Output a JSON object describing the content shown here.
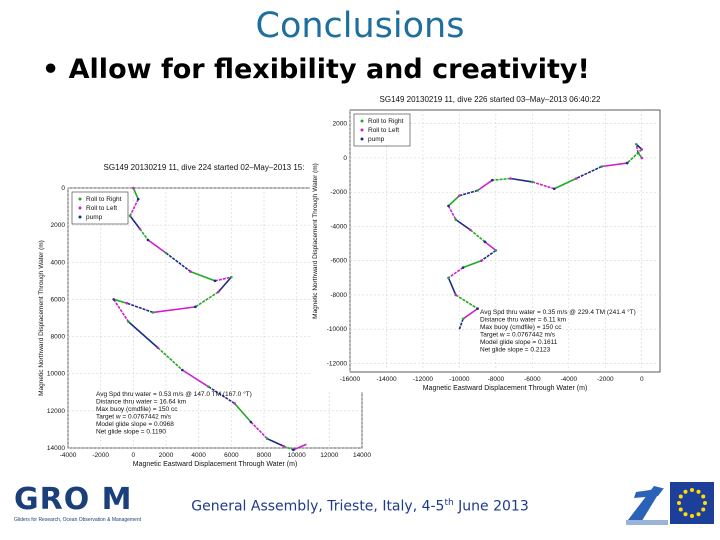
{
  "slide": {
    "title": "Conclusions",
    "bullet": "• Allow for flexibility and creativity!",
    "footer": "General Assembly, Trieste, Italy, 4-5",
    "footer_sup": "th",
    "footer_tail": " June 2013",
    "groom_logo_text": "GRO M",
    "groom_logo_sub": "Gliders for Research, Ocean Observation & Management"
  },
  "colors": {
    "title": "#1f6f9e",
    "right_roll": "#22aa22",
    "left_roll": "#cc22cc",
    "pump": "#1e2a8a"
  },
  "chart_data": [
    {
      "type": "line",
      "title": "SG149 20130219 11, dive 224 started 02–May–2013 15:",
      "xlabel": "Magnetic Eastward Displacement Through Water (m)",
      "ylabel": "Magnetic Northward Displacement Through Water (m)",
      "xticks": [
        "-4000",
        "-2000",
        "0",
        "2000",
        "4000",
        "6000",
        "8000",
        "10000",
        "12000",
        "14000"
      ],
      "yticks": [
        "0",
        "2000",
        "4000",
        "6000",
        "8000",
        "10000",
        "12000",
        "14000"
      ],
      "legend": [
        "Roll to Right",
        "Roll to Left",
        "pump"
      ],
      "stats": [
        "Avg Spd thru water = 0.53 m/s @ 147.0    TM (167.0 °T)",
        "Distance thru water = 16.64 km",
        "Max buoy (cmdfile) =    150 cc",
        "Target w = 0.0767442 m/s",
        "Model glide slope = 0.0968",
        "Net glide slope = 0.1190"
      ],
      "path": [
        [
          0,
          0
        ],
        [
          300,
          600
        ],
        [
          -200,
          1500
        ],
        [
          400,
          2200
        ],
        [
          900,
          2800
        ],
        [
          2000,
          3500
        ],
        [
          3500,
          4500
        ],
        [
          5000,
          5000
        ],
        [
          6000,
          4800
        ],
        [
          5200,
          5600
        ],
        [
          3800,
          6400
        ],
        [
          1200,
          6700
        ],
        [
          -400,
          6200
        ],
        [
          -1200,
          6000
        ],
        [
          -300,
          7200
        ],
        [
          1500,
          8600
        ],
        [
          3000,
          9800
        ],
        [
          4600,
          10700
        ],
        [
          6200,
          11600
        ],
        [
          7200,
          12600
        ],
        [
          8200,
          13500
        ],
        [
          9200,
          13900
        ],
        [
          9800,
          14100
        ],
        [
          10600,
          13800
        ]
      ]
    },
    {
      "type": "line",
      "title": "SG149 20130219 11, dive 226 started 03–May–2013 06:40:22",
      "xlabel": "Magnetic Eastward Displacement Through Water (m)",
      "ylabel": "Magnetic Northward Displacement Through Water (m)",
      "xticks": [
        "-16000",
        "-14000",
        "-12000",
        "-10000",
        "-8000",
        "-6000",
        "-4000",
        "-2000",
        "0"
      ],
      "yticks": [
        "2000",
        "0",
        "-2000",
        "-4000",
        "-6000",
        "-8000",
        "-10000",
        "-12000"
      ],
      "legend": [
        "Roll to Right",
        "Roll to Left",
        "pump"
      ],
      "stats": [
        "Avg Spd thru water = 0.35 m/s @ 229.4    TM (241.4 °T)",
        "Distance thru water = 6.11 km",
        "Max buoy (cmdfile) = 150 cc",
        "Target w = 0.0767442 m/s",
        "Model glide slope = 0.1611",
        "Net glide slope = 0.2123"
      ],
      "path": [
        [
          0,
          0
        ],
        [
          -200,
          300
        ],
        [
          -300,
          800
        ],
        [
          0,
          500
        ],
        [
          -800,
          -300
        ],
        [
          -2200,
          -500
        ],
        [
          -3600,
          -1200
        ],
        [
          -4800,
          -1800
        ],
        [
          -6000,
          -1400
        ],
        [
          -7200,
          -1200
        ],
        [
          -8200,
          -1300
        ],
        [
          -9000,
          -1900
        ],
        [
          -10000,
          -2200
        ],
        [
          -10600,
          -2800
        ],
        [
          -10200,
          -3600
        ],
        [
          -9400,
          -4200
        ],
        [
          -8600,
          -4900
        ],
        [
          -8000,
          -5400
        ],
        [
          -8800,
          -6000
        ],
        [
          -9800,
          -6400
        ],
        [
          -10600,
          -7000
        ],
        [
          -10200,
          -8000
        ],
        [
          -9000,
          -8800
        ],
        [
          -9800,
          -9400
        ],
        [
          -10000,
          -10000
        ]
      ]
    }
  ]
}
